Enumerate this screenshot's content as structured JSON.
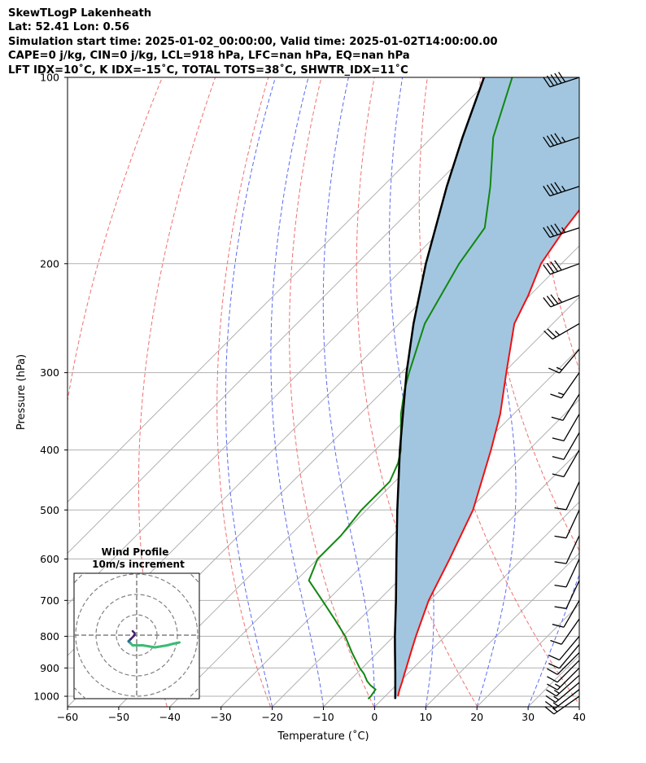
{
  "header": {
    "line1": "SkewTLogP Lakenheath",
    "line2": "Lat: 52.41   Lon: 0.56",
    "line3": "Simulation start time: 2025-01-02_00:00:00, Valid time: 2025-01-02T14:00:00.00",
    "line4": "CAPE=0 j/kg, CIN=0 j/kg, LCL=918 hPa, LFC=nan hPa, EQ=nan hPa",
    "line5": "LFT IDX=10˚C, K IDX=-15˚C, TOTAL TOTS=38˚C, SHWTR_IDX=11˚C"
  },
  "chart_data": [
    {
      "type": "line",
      "subtype": "skew-t log-p",
      "xlabel": "Temperature (˚C)",
      "ylabel": "Pressure (hPa)",
      "xlim": [
        -60,
        40
      ],
      "ylim": [
        1040,
        100
      ],
      "y_scale": "log",
      "xticks": [
        -60,
        -50,
        -40,
        -30,
        -20,
        -10,
        0,
        10,
        20,
        30,
        40
      ],
      "xtick_labels": [
        "−60",
        "−50",
        "−40",
        "−30",
        "−20",
        "−10",
        "0",
        "10",
        "20",
        "30",
        "40"
      ],
      "yticks": [
        1000,
        900,
        800,
        700,
        600,
        500,
        400,
        300,
        200,
        100
      ],
      "grid": true,
      "series": [
        {
          "key": "temperature",
          "color": "#ee1111",
          "points": [
            [
              1000,
              2.5
            ],
            [
              975,
              1.5
            ],
            [
              950,
              0.6
            ],
            [
              925,
              -0.4
            ],
            [
              900,
              -1.4
            ],
            [
              850,
              -3.5
            ],
            [
              800,
              -5.7
            ],
            [
              700,
              -10.2
            ],
            [
              600,
              -14.2
            ],
            [
              500,
              -19.2
            ],
            [
              400,
              -27.4
            ],
            [
              350,
              -32.6
            ],
            [
              300,
              -39.5
            ],
            [
              250,
              -47.5
            ],
            [
              225,
              -50.3
            ],
            [
              200,
              -54
            ],
            [
              175,
              -56.2
            ],
            [
              150,
              -58
            ],
            [
              125,
              -59.5
            ],
            [
              100,
              -61
            ]
          ]
        },
        {
          "key": "dewpoint",
          "color": "#118811",
          "points": [
            [
              1010,
              -2.8
            ],
            [
              1000,
              -2.8
            ],
            [
              975,
              -3.2
            ],
            [
              960,
              -5
            ],
            [
              945,
              -6.5
            ],
            [
              920,
              -8.5
            ],
            [
              900,
              -10.5
            ],
            [
              850,
              -15
            ],
            [
              800,
              -19.5
            ],
            [
              750,
              -25
            ],
            [
              700,
              -31
            ],
            [
              650,
              -37.5
            ],
            [
              600,
              -40
            ],
            [
              550,
              -40
            ],
            [
              500,
              -41
            ],
            [
              450,
              -41
            ],
            [
              420,
              -43
            ],
            [
              400,
              -45
            ],
            [
              350,
              -52
            ],
            [
              320,
              -56
            ],
            [
              300,
              -58.5
            ],
            [
              250,
              -65
            ],
            [
              200,
              -70
            ],
            [
              175,
              -72
            ],
            [
              150,
              -79
            ],
            [
              125,
              -88
            ],
            [
              100,
              -96
            ]
          ]
        },
        {
          "key": "parcel",
          "color": "#000000",
          "points": [
            [
              1010,
              2.5
            ],
            [
              918,
              -2.5
            ],
            [
              850,
              -6.6
            ],
            [
              800,
              -9.8
            ],
            [
              700,
              -16.6
            ],
            [
              600,
              -24.6
            ],
            [
              500,
              -34
            ],
            [
              400,
              -45.2
            ],
            [
              300,
              -59
            ],
            [
              250,
              -67.2
            ],
            [
              200,
              -76.5
            ],
            [
              150,
              -87.5
            ],
            [
              125,
              -94
            ],
            [
              100,
              -101.5
            ]
          ]
        }
      ],
      "shading": {
        "between": [
          "parcel",
          "temperature"
        ],
        "color": "#a2c6df"
      },
      "wind_barbs": {
        "pressures": [
          100,
          125,
          150,
          175,
          200,
          225,
          250,
          275,
          300,
          325,
          350,
          375,
          400,
          450,
          500,
          550,
          600,
          650,
          700,
          750,
          800,
          825,
          850,
          875,
          900,
          925,
          950,
          975,
          1000
        ],
        "direction_deg": [
          252,
          252,
          252,
          252,
          250,
          248,
          240,
          220,
          215,
          212,
          210,
          210,
          210,
          205,
          205,
          205,
          205,
          205,
          210,
          215,
          220,
          220,
          225,
          225,
          225,
          228,
          230,
          232,
          235
        ],
        "speed_kt": [
          50,
          45,
          45,
          45,
          40,
          35,
          25,
          15,
          15,
          12,
          10,
          10,
          10,
          10,
          10,
          10,
          10,
          10,
          10,
          10,
          10,
          12,
          12,
          12,
          15,
          15,
          15,
          15,
          15
        ]
      },
      "dry_adiabats_theta_K": [
        210,
        230,
        250,
        270,
        290,
        310,
        330,
        350,
        370,
        390,
        410,
        430,
        450
      ],
      "moist_adiabats_start_C": [
        -20,
        -10,
        0,
        10,
        20,
        30,
        40
      ],
      "isotherms_C": [
        -100,
        -90,
        -80,
        -70,
        -60,
        -50,
        -40,
        -30,
        -20,
        -10,
        0,
        10,
        20,
        30,
        40,
        50
      ]
    },
    {
      "type": "scatter",
      "subtype": "hodograph",
      "title": "Wind Profile",
      "subtitle": "10m/s increment",
      "ring_speeds_ms": [
        10,
        20,
        30,
        40
      ],
      "points_uv_ms": [
        [
          -3,
          -2
        ],
        [
          -4,
          -3
        ],
        [
          -3,
          -4
        ],
        [
          -2,
          -5
        ],
        [
          0,
          -5
        ],
        [
          3,
          -5
        ],
        [
          6,
          -5.5
        ],
        [
          9,
          -6
        ],
        [
          12,
          -5.5
        ],
        [
          15,
          -5
        ],
        [
          18,
          -4.2
        ],
        [
          20,
          -3.8
        ],
        [
          21,
          -3.6
        ]
      ],
      "upper_points_uv_ms": [
        [
          -3,
          -2
        ],
        [
          -2,
          -1
        ],
        [
          -1,
          0
        ],
        [
          -1,
          1
        ],
        [
          -2,
          2
        ]
      ],
      "colors": [
        "#481e70",
        "#2c718e",
        "#3dbb74"
      ]
    }
  ]
}
